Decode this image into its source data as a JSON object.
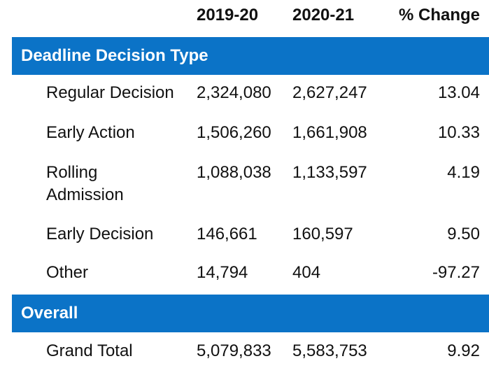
{
  "table": {
    "columns": [
      "2019-20",
      "2020-21",
      "% Change"
    ],
    "sections": [
      {
        "title": "Deadline Decision Type",
        "rows": [
          [
            "Regular Decision",
            "2,324,080",
            "2,627,247",
            "13.04"
          ],
          [
            "Early Action",
            "1,506,260",
            "1,661,908",
            "10.33"
          ],
          [
            "Rolling Admission",
            "1,088,038",
            "1,133,597",
            "4.19"
          ],
          [
            "Early Decision",
            "146,661",
            "160,597",
            "9.50"
          ],
          [
            "Other",
            "14,794",
            "404",
            "-97.27"
          ]
        ]
      },
      {
        "title": "Overall",
        "rows": [
          [
            "Grand Total",
            "5,079,833",
            "5,583,753",
            "9.92"
          ]
        ]
      }
    ]
  }
}
